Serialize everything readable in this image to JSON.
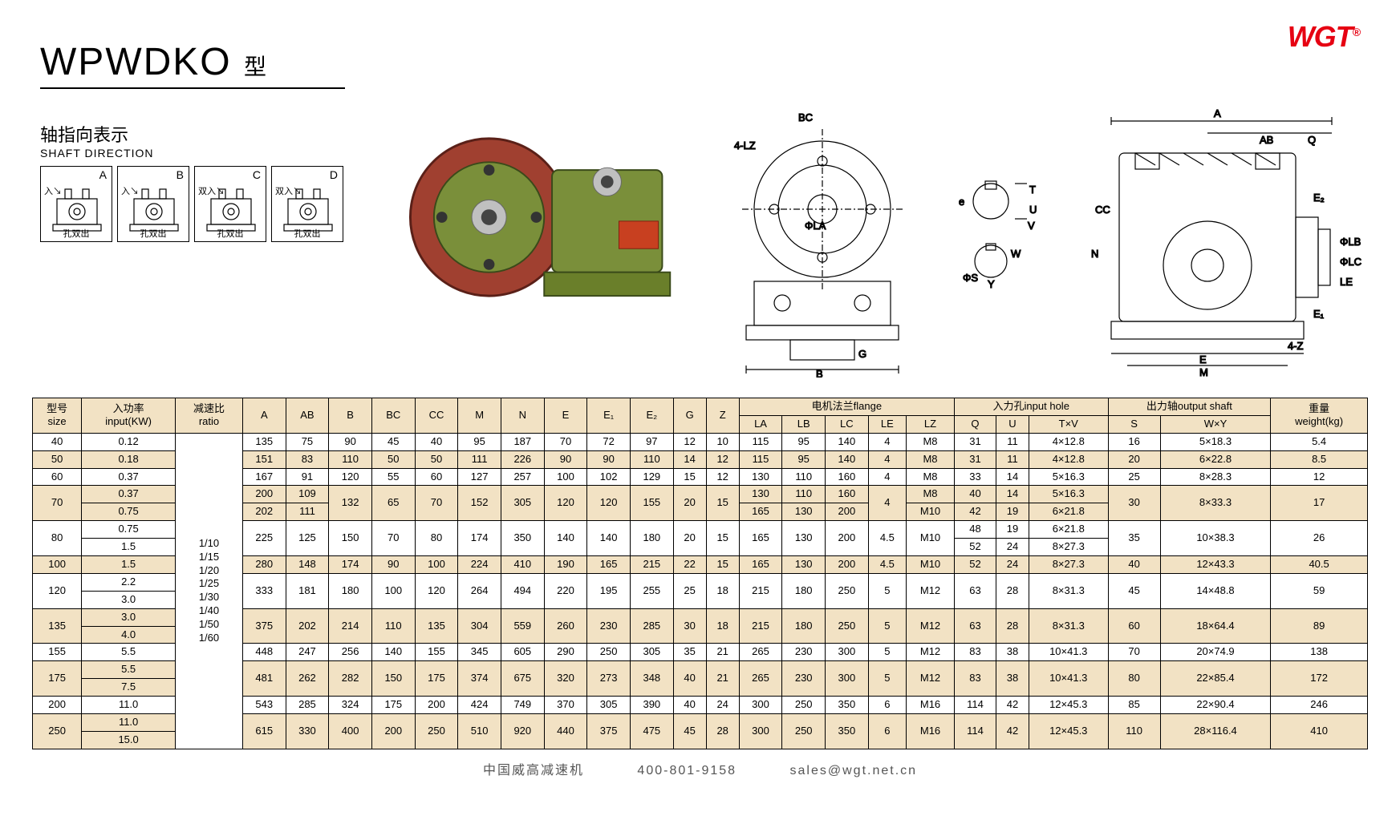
{
  "brand": {
    "logo_text": "WGT",
    "logo_color": "#e60012"
  },
  "title": {
    "model": "WPWDKO",
    "suffix_cn": "型"
  },
  "shaft": {
    "label_cn": "轴指向表示",
    "label_en": "SHAFT DIRECTION",
    "boxes": [
      {
        "letter": "A",
        "top": "入",
        "bottom": "孔双出"
      },
      {
        "letter": "B",
        "top": "入",
        "bottom": "孔双出"
      },
      {
        "letter": "C",
        "top": "双入",
        "bottom": "孔双出"
      },
      {
        "letter": "D",
        "top": "双入",
        "bottom": "孔双出"
      }
    ]
  },
  "drawing_labels": {
    "front": [
      "4-LZ",
      "BC",
      "ΦLA",
      "ΦS",
      "W",
      "Y",
      "G",
      "B",
      "T",
      "e",
      "U",
      "V"
    ],
    "side": [
      "A",
      "AB",
      "Q",
      "E₂",
      "CC",
      "N",
      "E₁",
      "E",
      "M",
      "4-Z",
      "ΦLB",
      "ΦLC",
      "LE"
    ]
  },
  "table": {
    "headers": {
      "row1": [
        "型号\nsize",
        "入功率\ninput(KW)",
        "减速比\nratio",
        "A",
        "AB",
        "B",
        "BC",
        "CC",
        "M",
        "N",
        "E",
        "E₁",
        "E₂",
        "G",
        "Z",
        "电机法兰flange",
        "入力孔input hole",
        "出力轴output shaft",
        "重量\nweight(kg)"
      ],
      "flange_sub": [
        "LA",
        "LB",
        "LC",
        "LE",
        "LZ"
      ],
      "input_sub": [
        "Q",
        "U",
        "T×V"
      ],
      "output_sub": [
        "S",
        "W×Y"
      ]
    },
    "ratio_text": "1/10\n1/15\n1/20\n1/25\n1/30\n1/40\n1/50\n1/60",
    "rows": [
      {
        "alt": 0,
        "size": "40",
        "kw": [
          "0.12"
        ],
        "A": "135",
        "AB": "75",
        "B": "90",
        "BC": "45",
        "CC": "40",
        "M": "95",
        "N": "187",
        "E": "70",
        "E1": "72",
        "E2": "97",
        "G": "12",
        "Z": "10",
        "LA": "115",
        "LB": "95",
        "LC": "140",
        "LE": "4",
        "LZ": "M8",
        "Q": "31",
        "U": "11",
        "TV": "4×12.8",
        "S": "16",
        "WY": "5×18.3",
        "kg": "5.4"
      },
      {
        "alt": 1,
        "size": "50",
        "kw": [
          "0.18"
        ],
        "A": "151",
        "AB": "83",
        "B": "110",
        "BC": "50",
        "CC": "50",
        "M": "111",
        "N": "226",
        "E": "90",
        "E1": "90",
        "E2": "110",
        "G": "14",
        "Z": "12",
        "LA": "115",
        "LB": "95",
        "LC": "140",
        "LE": "4",
        "LZ": "M8",
        "Q": "31",
        "U": "11",
        "TV": "4×12.8",
        "S": "20",
        "WY": "6×22.8",
        "kg": "8.5"
      },
      {
        "alt": 0,
        "size": "60",
        "kw": [
          "0.37"
        ],
        "A": "167",
        "AB": "91",
        "B": "120",
        "BC": "55",
        "CC": "60",
        "M": "127",
        "N": "257",
        "E": "100",
        "E1": "102",
        "E2": "129",
        "G": "15",
        "Z": "12",
        "LA": "130",
        "LB": "110",
        "LC": "160",
        "LE": "4",
        "LZ": "M8",
        "Q": "33",
        "U": "14",
        "TV": "5×16.3",
        "S": "25",
        "WY": "8×28.3",
        "kg": "12"
      },
      {
        "alt": 1,
        "size": "70",
        "kw": [
          "0.37",
          "0.75"
        ],
        "A": [
          "200",
          "202"
        ],
        "AB": [
          "109",
          "111"
        ],
        "B": "132",
        "BC": "65",
        "CC": "70",
        "M": "152",
        "N": "305",
        "E": "120",
        "E1": "120",
        "E2": "155",
        "G": "20",
        "Z": "15",
        "LA": [
          "130",
          "165"
        ],
        "LB": [
          "110",
          "130"
        ],
        "LC": [
          "160",
          "200"
        ],
        "LE": "4",
        "LZ": [
          "M8",
          "M10"
        ],
        "Q": [
          "40",
          "42"
        ],
        "U": [
          "14",
          "19"
        ],
        "TV": [
          "5×16.3",
          "6×21.8"
        ],
        "S": "30",
        "WY": "8×33.3",
        "kg": "17"
      },
      {
        "alt": 0,
        "size": "80",
        "kw": [
          "0.75",
          "1.5"
        ],
        "A": "225",
        "AB": "125",
        "B": "150",
        "BC": "70",
        "CC": "80",
        "M": "174",
        "N": "350",
        "E": "140",
        "E1": "140",
        "E2": "180",
        "G": "20",
        "Z": "15",
        "LA": "165",
        "LB": "130",
        "LC": "200",
        "LE": "4.5",
        "LZ": "M10",
        "Q": [
          "48",
          "52"
        ],
        "U": [
          "19",
          "24"
        ],
        "TV": [
          "6×21.8",
          "8×27.3"
        ],
        "S": "35",
        "WY": "10×38.3",
        "kg": "26"
      },
      {
        "alt": 1,
        "size": "100",
        "kw": [
          "1.5"
        ],
        "A": "280",
        "AB": "148",
        "B": "174",
        "BC": "90",
        "CC": "100",
        "M": "224",
        "N": "410",
        "E": "190",
        "E1": "165",
        "E2": "215",
        "G": "22",
        "Z": "15",
        "LA": "165",
        "LB": "130",
        "LC": "200",
        "LE": "4.5",
        "LZ": "M10",
        "Q": "52",
        "U": "24",
        "TV": "8×27.3",
        "S": "40",
        "WY": "12×43.3",
        "kg": "40.5"
      },
      {
        "alt": 0,
        "size": "120",
        "kw": [
          "2.2",
          "3.0"
        ],
        "A": "333",
        "AB": "181",
        "B": "180",
        "BC": "100",
        "CC": "120",
        "M": "264",
        "N": "494",
        "E": "220",
        "E1": "195",
        "E2": "255",
        "G": "25",
        "Z": "18",
        "LA": "215",
        "LB": "180",
        "LC": "250",
        "LE": "5",
        "LZ": "M12",
        "Q": "63",
        "U": "28",
        "TV": "8×31.3",
        "S": "45",
        "WY": "14×48.8",
        "kg": "59"
      },
      {
        "alt": 1,
        "size": "135",
        "kw": [
          "3.0",
          "4.0"
        ],
        "A": "375",
        "AB": "202",
        "B": "214",
        "BC": "110",
        "CC": "135",
        "M": "304",
        "N": "559",
        "E": "260",
        "E1": "230",
        "E2": "285",
        "G": "30",
        "Z": "18",
        "LA": "215",
        "LB": "180",
        "LC": "250",
        "LE": "5",
        "LZ": "M12",
        "Q": "63",
        "U": "28",
        "TV": "8×31.3",
        "S": "60",
        "WY": "18×64.4",
        "kg": "89"
      },
      {
        "alt": 0,
        "size": "155",
        "kw": [
          "5.5"
        ],
        "A": "448",
        "AB": "247",
        "B": "256",
        "BC": "140",
        "CC": "155",
        "M": "345",
        "N": "605",
        "E": "290",
        "E1": "250",
        "E2": "305",
        "G": "35",
        "Z": "21",
        "LA": "265",
        "LB": "230",
        "LC": "300",
        "LE": "5",
        "LZ": "M12",
        "Q": "83",
        "U": "38",
        "TV": "10×41.3",
        "S": "70",
        "WY": "20×74.9",
        "kg": "138"
      },
      {
        "alt": 1,
        "size": "175",
        "kw": [
          "5.5",
          "7.5"
        ],
        "A": "481",
        "AB": "262",
        "B": "282",
        "BC": "150",
        "CC": "175",
        "M": "374",
        "N": "675",
        "E": "320",
        "E1": "273",
        "E2": "348",
        "G": "40",
        "Z": "21",
        "LA": "265",
        "LB": "230",
        "LC": "300",
        "LE": "5",
        "LZ": "M12",
        "Q": "83",
        "U": "38",
        "TV": "10×41.3",
        "S": "80",
        "WY": "22×85.4",
        "kg": "172"
      },
      {
        "alt": 0,
        "size": "200",
        "kw": [
          "11.0"
        ],
        "A": "543",
        "AB": "285",
        "B": "324",
        "BC": "175",
        "CC": "200",
        "M": "424",
        "N": "749",
        "E": "370",
        "E1": "305",
        "E2": "390",
        "G": "40",
        "Z": "24",
        "LA": "300",
        "LB": "250",
        "LC": "350",
        "LE": "6",
        "LZ": "M16",
        "Q": "114",
        "U": "42",
        "TV": "12×45.3",
        "S": "85",
        "WY": "22×90.4",
        "kg": "246"
      },
      {
        "alt": 1,
        "size": "250",
        "kw": [
          "11.0",
          "15.0"
        ],
        "A": "615",
        "AB": "330",
        "B": "400",
        "BC": "200",
        "CC": "250",
        "M": "510",
        "N": "920",
        "E": "440",
        "E1": "375",
        "E2": "475",
        "G": "45",
        "Z": "28",
        "LA": "300",
        "LB": "250",
        "LC": "350",
        "LE": "6",
        "LZ": "M16",
        "Q": "114",
        "U": "42",
        "TV": "12×45.3",
        "S": "110",
        "WY": "28×116.4",
        "kg": "410"
      }
    ],
    "header_bg": "#f2e2c4",
    "border_color": "#000000"
  },
  "footer": {
    "company": "中国威高减速机",
    "phone": "400-801-9158",
    "email": "sales@wgt.net.cn"
  }
}
